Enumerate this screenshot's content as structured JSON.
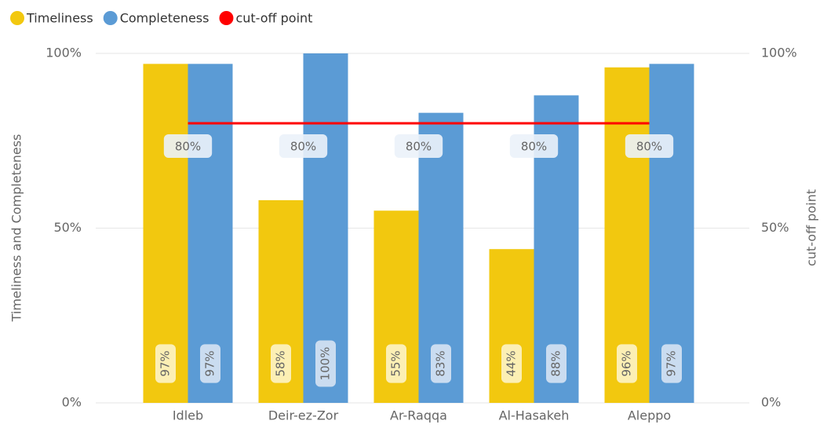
{
  "chart_data": {
    "type": "bar",
    "categories": [
      "Idleb",
      "Deir-ez-Zor",
      "Ar-Raqqa",
      "Al-Hasakeh",
      "Aleppo"
    ],
    "series": [
      {
        "name": "Timeliness",
        "color": "#f2c80f",
        "values": [
          97,
          58,
          55,
          44,
          96
        ],
        "value_labels": [
          "97%",
          "58%",
          "55%",
          "44%",
          "96%"
        ]
      },
      {
        "name": "Completeness",
        "color": "#5b9bd5",
        "values": [
          97,
          100,
          83,
          88,
          97
        ],
        "value_labels": [
          "97%",
          "100%",
          "83%",
          "88%",
          "97%"
        ]
      },
      {
        "name": "cut-off point",
        "color": "#ff0000",
        "type": "line",
        "axis": "y2",
        "values": [
          80,
          80,
          80,
          80,
          80
        ],
        "value_labels": [
          "80%",
          "80%",
          "80%",
          "80%",
          "80%"
        ]
      }
    ],
    "ylabel": "Timeliness and Completeness",
    "y2label": "cut-off point",
    "ylim": [
      0,
      100
    ],
    "yticks": [
      {
        "value": 0,
        "label": "0%"
      },
      {
        "value": 50,
        "label": "50%"
      },
      {
        "value": 100,
        "label": "100%"
      }
    ],
    "y2lim": [
      0,
      100
    ],
    "y2ticks": [
      {
        "value": 0,
        "label": "0%"
      },
      {
        "value": 50,
        "label": "50%"
      },
      {
        "value": 100,
        "label": "100%"
      }
    ],
    "grid": true,
    "legend": "top-left"
  }
}
